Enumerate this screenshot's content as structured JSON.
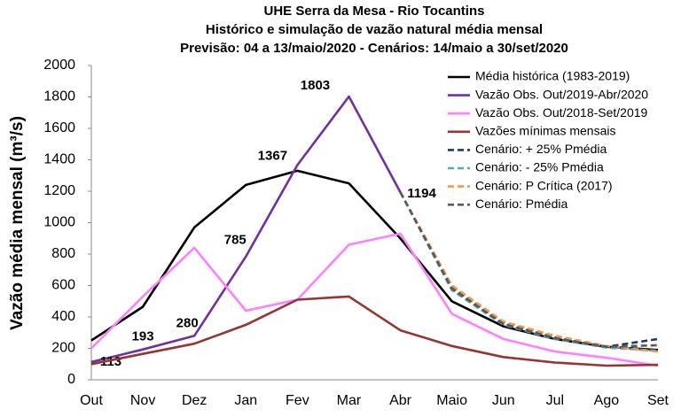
{
  "chart_data": {
    "type": "line",
    "title": [
      "UHE Serra da Mesa - Rio Tocantins",
      "Histórico e simulação de vazão natural média mensal",
      "Previsão: 04 a 13/maio/2020 - Cenários: 14/maio a 30/set/2020"
    ],
    "y_label": "Vazão média mensal (m³/s)",
    "categories": [
      "Out",
      "Nov",
      "Dez",
      "Jan",
      "Fev",
      "Mar",
      "Abr",
      "Maio",
      "Jun",
      "Jul",
      "Ago",
      "Set"
    ],
    "ylim": [
      0,
      2000
    ],
    "yticks": [
      0,
      200,
      400,
      600,
      800,
      1000,
      1200,
      1400,
      1600,
      1800,
      2000
    ],
    "legend": "top-right",
    "series": [
      {
        "name": "Média histórica (1983-2019)",
        "color": "#000000",
        "dashed": false,
        "values": [
          250,
          465,
          970,
          1240,
          1330,
          1250,
          900,
          500,
          340,
          260,
          210,
          190
        ]
      },
      {
        "name": "Vazão Obs. Out/2019-Abr/2020",
        "color": "#7030a0",
        "dashed": false,
        "data_labels": true,
        "values": [
          113,
          193,
          280,
          785,
          1367,
          1803,
          1194,
          null,
          null,
          null,
          null,
          null
        ]
      },
      {
        "name": "Vazão Obs. Out/2018-Set/2019",
        "color": "#ff80ff",
        "dashed": false,
        "values": [
          200,
          530,
          840,
          440,
          510,
          860,
          930,
          420,
          260,
          180,
          140,
          90
        ]
      },
      {
        "name": "Vazões mínimas mensais",
        "color": "#943634",
        "dashed": false,
        "values": [
          100,
          165,
          230,
          350,
          510,
          530,
          315,
          215,
          145,
          110,
          90,
          95
        ]
      },
      {
        "name": "Cenário: + 25% Pmédia",
        "color": "#1f3864",
        "dashed": true,
        "values": [
          null,
          null,
          null,
          null,
          null,
          null,
          1194,
          590,
          360,
          270,
          210,
          260
        ]
      },
      {
        "name": "Cenário: - 25% Pmédia",
        "color": "#4bacc6",
        "dashed": true,
        "values": [
          null,
          null,
          null,
          null,
          null,
          null,
          1194,
          570,
          350,
          260,
          205,
          185
        ]
      },
      {
        "name": "Cenário: P Crítica (2017)",
        "color": "#f79646",
        "dashed": true,
        "values": [
          null,
          null,
          null,
          null,
          null,
          null,
          1194,
          600,
          370,
          280,
          215,
          180
        ]
      },
      {
        "name": "Cenário: Pmédia",
        "color": "#595959",
        "dashed": true,
        "values": [
          null,
          null,
          null,
          null,
          null,
          null,
          1194,
          580,
          355,
          265,
          210,
          220
        ]
      }
    ]
  }
}
